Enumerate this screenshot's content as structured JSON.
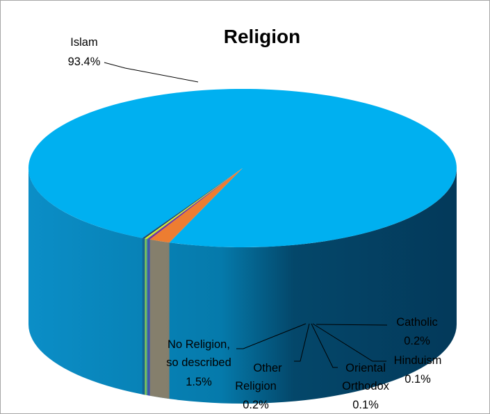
{
  "chart_data": {
    "type": "pie",
    "style": "3d",
    "title": "Religion",
    "start_angle_deg": 110,
    "slices": [
      {
        "name": "Islam",
        "value": 93.4,
        "pct_label": "93.4%",
        "color": "#00b0f0"
      },
      {
        "name": "Catholic",
        "value": 0.2,
        "pct_label": "0.2%",
        "color": "#1f4e79"
      },
      {
        "name": "Hinduism",
        "value": 0.1,
        "pct_label": "0.1%",
        "color": "#ffff00"
      },
      {
        "name": "Oriental Orthodox",
        "value": 0.1,
        "pct_label": "0.1%",
        "color": "#92d050"
      },
      {
        "name": "Other Religion",
        "value": 0.2,
        "pct_label": "0.2%",
        "color": "#7030a0"
      },
      {
        "name": "No Religion, so described",
        "value": 1.5,
        "pct_label": "1.5%",
        "color": "#ed7d31"
      }
    ],
    "labels": {
      "islam": {
        "line1": "Islam",
        "line2": "93.4%"
      },
      "catholic": {
        "line1": "Catholic",
        "line2": "0.2%"
      },
      "hinduism": {
        "line1": "Hinduism",
        "line2": "0.1%"
      },
      "orthodox": {
        "line1": "Oriental",
        "line2": "Orthodox",
        "line3": "0.1%"
      },
      "other": {
        "line1": "Other",
        "line2": "Religion",
        "line3": "0.2%"
      },
      "norel": {
        "line1": "No Religion,",
        "line2": "so described",
        "line3": "1.5%"
      }
    }
  }
}
